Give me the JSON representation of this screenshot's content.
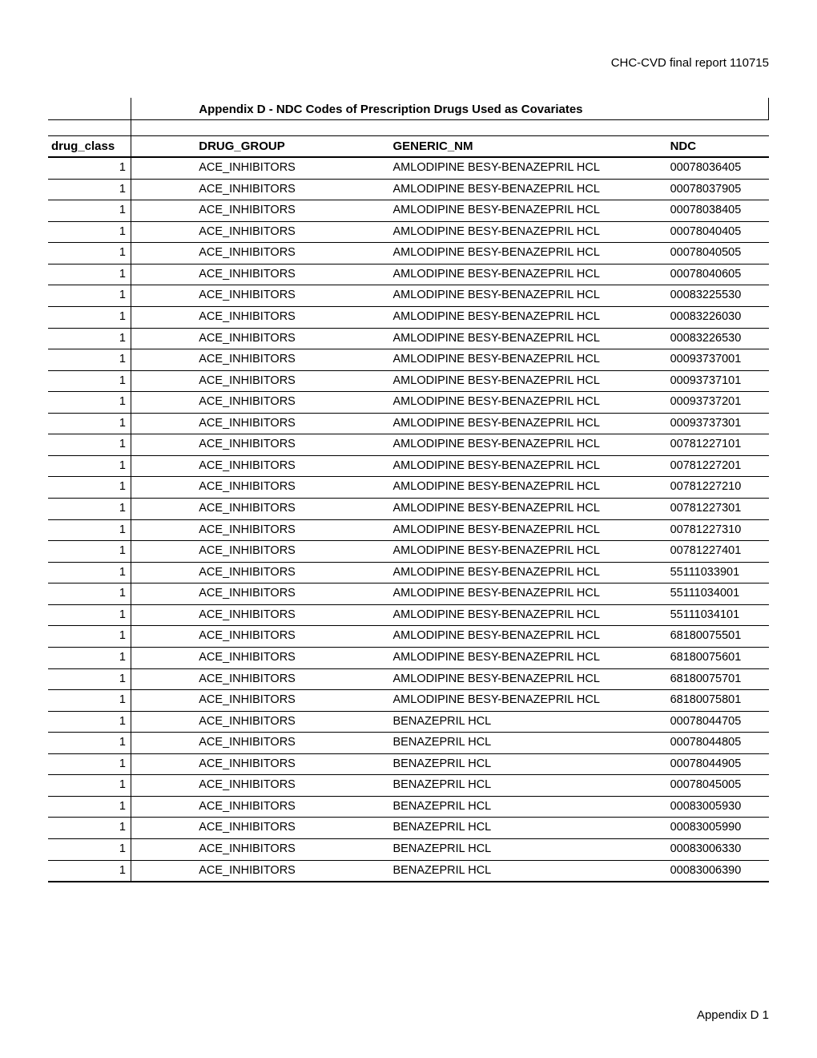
{
  "doc_header": "CHC-CVD final report 110715",
  "footer": "Appendix D 1",
  "table": {
    "title": "Appendix D - NDC Codes of Prescription Drugs Used as Covariates",
    "columns": [
      "drug_class",
      "DRUG_GROUP",
      "GENERIC_NM",
      "NDC"
    ],
    "rows": [
      [
        "1",
        "ACE_INHIBITORS",
        "AMLODIPINE BESY-BENAZEPRIL HCL",
        "00078036405"
      ],
      [
        "1",
        "ACE_INHIBITORS",
        "AMLODIPINE BESY-BENAZEPRIL HCL",
        "00078037905"
      ],
      [
        "1",
        "ACE_INHIBITORS",
        "AMLODIPINE BESY-BENAZEPRIL HCL",
        "00078038405"
      ],
      [
        "1",
        "ACE_INHIBITORS",
        "AMLODIPINE BESY-BENAZEPRIL HCL",
        "00078040405"
      ],
      [
        "1",
        "ACE_INHIBITORS",
        "AMLODIPINE BESY-BENAZEPRIL HCL",
        "00078040505"
      ],
      [
        "1",
        "ACE_INHIBITORS",
        "AMLODIPINE BESY-BENAZEPRIL HCL",
        "00078040605"
      ],
      [
        "1",
        "ACE_INHIBITORS",
        "AMLODIPINE BESY-BENAZEPRIL HCL",
        "00083225530"
      ],
      [
        "1",
        "ACE_INHIBITORS",
        "AMLODIPINE BESY-BENAZEPRIL HCL",
        "00083226030"
      ],
      [
        "1",
        "ACE_INHIBITORS",
        "AMLODIPINE BESY-BENAZEPRIL HCL",
        "00083226530"
      ],
      [
        "1",
        "ACE_INHIBITORS",
        "AMLODIPINE BESY-BENAZEPRIL HCL",
        "00093737001"
      ],
      [
        "1",
        "ACE_INHIBITORS",
        "AMLODIPINE BESY-BENAZEPRIL HCL",
        "00093737101"
      ],
      [
        "1",
        "ACE_INHIBITORS",
        "AMLODIPINE BESY-BENAZEPRIL HCL",
        "00093737201"
      ],
      [
        "1",
        "ACE_INHIBITORS",
        "AMLODIPINE BESY-BENAZEPRIL HCL",
        "00093737301"
      ],
      [
        "1",
        "ACE_INHIBITORS",
        "AMLODIPINE BESY-BENAZEPRIL HCL",
        "00781227101"
      ],
      [
        "1",
        "ACE_INHIBITORS",
        "AMLODIPINE BESY-BENAZEPRIL HCL",
        "00781227201"
      ],
      [
        "1",
        "ACE_INHIBITORS",
        "AMLODIPINE BESY-BENAZEPRIL HCL",
        "00781227210"
      ],
      [
        "1",
        "ACE_INHIBITORS",
        "AMLODIPINE BESY-BENAZEPRIL HCL",
        "00781227301"
      ],
      [
        "1",
        "ACE_INHIBITORS",
        "AMLODIPINE BESY-BENAZEPRIL HCL",
        "00781227310"
      ],
      [
        "1",
        "ACE_INHIBITORS",
        "AMLODIPINE BESY-BENAZEPRIL HCL",
        "00781227401"
      ],
      [
        "1",
        "ACE_INHIBITORS",
        "AMLODIPINE BESY-BENAZEPRIL HCL",
        "55111033901"
      ],
      [
        "1",
        "ACE_INHIBITORS",
        "AMLODIPINE BESY-BENAZEPRIL HCL",
        "55111034001"
      ],
      [
        "1",
        "ACE_INHIBITORS",
        "AMLODIPINE BESY-BENAZEPRIL HCL",
        "55111034101"
      ],
      [
        "1",
        "ACE_INHIBITORS",
        "AMLODIPINE BESY-BENAZEPRIL HCL",
        "68180075501"
      ],
      [
        "1",
        "ACE_INHIBITORS",
        "AMLODIPINE BESY-BENAZEPRIL HCL",
        "68180075601"
      ],
      [
        "1",
        "ACE_INHIBITORS",
        "AMLODIPINE BESY-BENAZEPRIL HCL",
        "68180075701"
      ],
      [
        "1",
        "ACE_INHIBITORS",
        "AMLODIPINE BESY-BENAZEPRIL HCL",
        "68180075801"
      ],
      [
        "1",
        "ACE_INHIBITORS",
        "BENAZEPRIL HCL",
        "00078044705"
      ],
      [
        "1",
        "ACE_INHIBITORS",
        "BENAZEPRIL HCL",
        "00078044805"
      ],
      [
        "1",
        "ACE_INHIBITORS",
        "BENAZEPRIL HCL",
        "00078044905"
      ],
      [
        "1",
        "ACE_INHIBITORS",
        "BENAZEPRIL HCL",
        "00078045005"
      ],
      [
        "1",
        "ACE_INHIBITORS",
        "BENAZEPRIL HCL",
        "00083005930"
      ],
      [
        "1",
        "ACE_INHIBITORS",
        "BENAZEPRIL HCL",
        "00083005990"
      ],
      [
        "1",
        "ACE_INHIBITORS",
        "BENAZEPRIL HCL",
        "00083006330"
      ],
      [
        "1",
        "ACE_INHIBITORS",
        "BENAZEPRIL HCL",
        "00083006390"
      ]
    ]
  }
}
